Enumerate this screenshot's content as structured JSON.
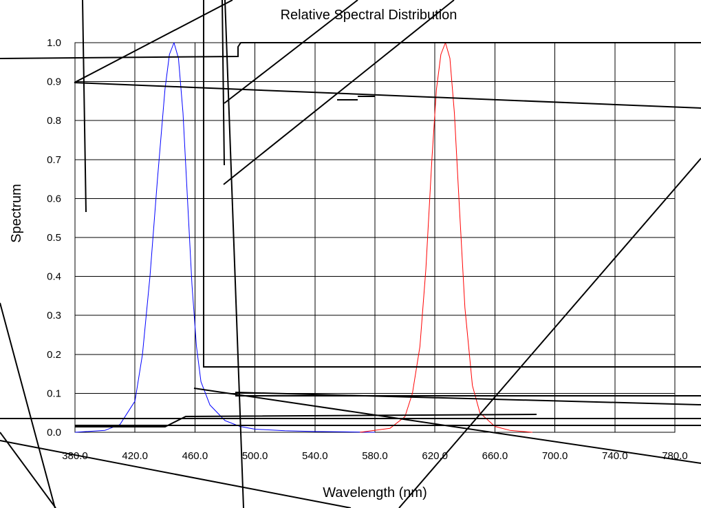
{
  "chart_data": {
    "type": "line",
    "title": "Relative Spectral Distribution",
    "xlabel": "Wavelength (nm)",
    "ylabel": "Spectrum",
    "xlim": [
      380,
      780
    ],
    "ylim": [
      0,
      1.0
    ],
    "x_ticks": [
      "380.0",
      "420.0",
      "460.0",
      "500.0",
      "540.0",
      "580.0",
      "620.0",
      "660.0",
      "700.0",
      "740.0",
      "780.0"
    ],
    "y_ticks": [
      "0.0",
      "0.1",
      "0.2",
      "0.3",
      "0.4",
      "0.5",
      "0.6",
      "0.7",
      "0.8",
      "0.9",
      "1.0"
    ],
    "grid": true,
    "series": [
      {
        "color": "#0000ff",
        "x": [
          380,
          400,
          410,
          420,
          425,
          430,
          435,
          440,
          443,
          446,
          449,
          452,
          455,
          458,
          461,
          464,
          470,
          480,
          490,
          500,
          520,
          540,
          560,
          580
        ],
        "y": [
          0.0,
          0.005,
          0.02,
          0.08,
          0.2,
          0.4,
          0.65,
          0.88,
          0.97,
          1.0,
          0.96,
          0.82,
          0.6,
          0.38,
          0.22,
          0.13,
          0.07,
          0.03,
          0.015,
          0.008,
          0.004,
          0.002,
          0.001,
          0.0
        ]
      },
      {
        "color": "#ff0000",
        "x": [
          570,
          590,
          600,
          605,
          610,
          614,
          618,
          621,
          624,
          627,
          630,
          633,
          636,
          640,
          645,
          650,
          660,
          670,
          685
        ],
        "y": [
          0.0,
          0.01,
          0.04,
          0.1,
          0.22,
          0.42,
          0.7,
          0.88,
          0.97,
          1.0,
          0.96,
          0.82,
          0.6,
          0.32,
          0.12,
          0.05,
          0.015,
          0.005,
          0.0
        ]
      }
    ]
  }
}
